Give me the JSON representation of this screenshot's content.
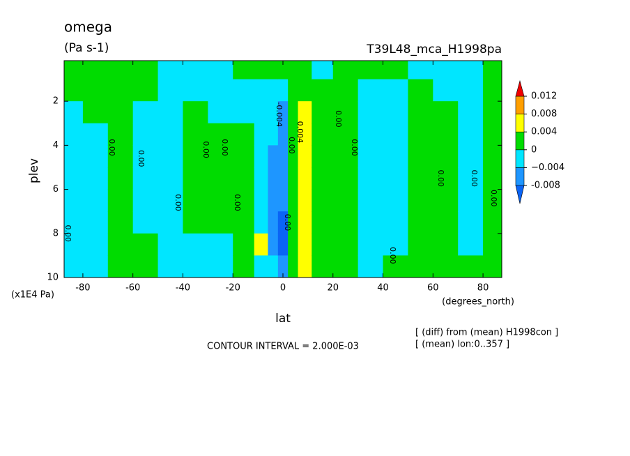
{
  "chart_data": {
    "type": "contour",
    "title": "omega",
    "units": "(Pa s-1)",
    "subtitle": "T39L48_mca_H1998pa",
    "x_label": "lat",
    "x_unit": "(degrees_north)",
    "y_label": "plev",
    "y_unit": "(x1E4 Pa)",
    "contour_interval": "CONTOUR INTERVAL = 2.000E-03",
    "notes": [
      "[ (diff) from (mean) H1998con ]",
      "[ (mean) lon:0..357 ]"
    ],
    "xlim": [
      -87.5,
      87.5
    ],
    "xticks": [
      -80,
      -60,
      -40,
      -20,
      0,
      20,
      40,
      60,
      80
    ],
    "ylim": [
      0.16,
      10
    ],
    "yticks": [
      2,
      4,
      6,
      8,
      10
    ],
    "y_reversed": true,
    "x": [
      -85,
      -75,
      -65,
      -55,
      -45,
      -35,
      -25,
      -15,
      -8,
      -4,
      0,
      4,
      8,
      15,
      25,
      35,
      45,
      55,
      65,
      75,
      85
    ],
    "y": [
      0.5,
      1.5,
      2.5,
      3.5,
      4.5,
      5.5,
      6.5,
      7.5,
      8.5,
      9.5
    ],
    "z": [
      [
        0.002,
        0.002,
        -0.002,
        -0.002,
        -0.002,
        -0.002,
        -0.002,
        -0.002,
        -0.002,
        -0.002
      ],
      [
        0.002,
        0.002,
        0.002,
        -0.002,
        -0.002,
        -0.002,
        -0.002,
        -0.002,
        -0.002,
        -0.002
      ],
      [
        0.002,
        0.002,
        0.002,
        0.002,
        0.002,
        0.002,
        0.002,
        0.002,
        0.002,
        0.002
      ],
      [
        0.002,
        0.002,
        -0.002,
        -0.002,
        -0.002,
        -0.002,
        -0.002,
        -0.002,
        0.002,
        0.002
      ],
      [
        -0.002,
        -0.002,
        -0.002,
        -0.002,
        -0.002,
        -0.002,
        -0.002,
        -0.002,
        -0.002,
        -0.002
      ],
      [
        -0.002,
        -0.002,
        0.002,
        0.002,
        0.002,
        0.002,
        0.002,
        0.002,
        -0.002,
        -0.002
      ],
      [
        -0.002,
        -0.002,
        -0.002,
        0.002,
        0.002,
        0.002,
        0.002,
        0.002,
        -0.002,
        -0.002
      ],
      [
        0.002,
        -0.002,
        -0.002,
        0.002,
        0.002,
        0.002,
        0.002,
        0.002,
        0.002,
        0.002
      ],
      [
        0.002,
        -0.002,
        -0.002,
        -0.002,
        -0.002,
        -0.002,
        -0.002,
        -0.002,
        0.006,
        -0.002
      ],
      [
        0.002,
        -0.002,
        -0.002,
        -0.002,
        -0.006,
        -0.006,
        -0.006,
        -0.006,
        -0.006,
        -0.002
      ],
      [
        0.002,
        -0.002,
        -0.006,
        -0.006,
        -0.006,
        -0.006,
        -0.006,
        -0.009,
        -0.009,
        -0.006
      ],
      [
        0.002,
        0.002,
        0.002,
        0.002,
        0.002,
        0.002,
        0.002,
        0.002,
        0.002,
        0.002
      ],
      [
        0.002,
        0.002,
        0.006,
        0.006,
        0.006,
        0.006,
        0.006,
        0.006,
        0.006,
        0.006
      ],
      [
        -0.002,
        0.002,
        0.002,
        0.002,
        0.002,
        0.002,
        0.002,
        0.002,
        0.002,
        0.002
      ],
      [
        0.002,
        0.002,
        0.002,
        0.002,
        0.002,
        0.002,
        0.002,
        0.002,
        0.002,
        0.002
      ],
      [
        0.002,
        -0.002,
        -0.002,
        -0.002,
        -0.002,
        -0.002,
        -0.002,
        -0.002,
        -0.002,
        -0.002
      ],
      [
        0.002,
        -0.002,
        -0.002,
        -0.002,
        -0.002,
        -0.002,
        -0.002,
        -0.002,
        -0.002,
        0.002
      ],
      [
        -0.002,
        0.002,
        0.002,
        0.002,
        0.002,
        0.002,
        0.002,
        0.002,
        0.002,
        0.002
      ],
      [
        -0.002,
        -0.002,
        0.002,
        0.002,
        0.002,
        0.002,
        0.002,
        0.002,
        0.002,
        0.002
      ],
      [
        -0.002,
        -0.002,
        -0.002,
        -0.002,
        -0.002,
        -0.002,
        -0.002,
        -0.002,
        -0.002,
        0.002
      ],
      [
        0.002,
        0.002,
        0.002,
        0.002,
        0.002,
        0.002,
        0.002,
        0.002,
        0.002,
        0.002
      ]
    ],
    "levels": [
      -0.008,
      {
        "value": -0.004,
        "label": "−0.004"
      },
      0,
      0.004,
      0.008,
      0.012
    ],
    "colors": [
      "#0a64f5",
      "#1e96ff",
      "#00e6ff",
      "#00dc00",
      "#ffff00",
      "#ff9f00",
      "#f00000"
    ],
    "contour_labels": [
      {
        "text": "0.00",
        "x": -86.1,
        "y": 8.0
      },
      {
        "text": "0.00",
        "x": -68.6,
        "y": 4.1
      },
      {
        "text": "0.00",
        "x": -56.9,
        "y": 4.6
      },
      {
        "text": "0.00",
        "x": -42.1,
        "y": 6.6
      },
      {
        "text": "0.00",
        "x": -30.9,
        "y": 4.2
      },
      {
        "text": "0.00",
        "x": -23.4,
        "y": 4.1
      },
      {
        "text": "0.00",
        "x": -18.4,
        "y": 6.6
      },
      {
        "text": "-0.004",
        "x": -1.7,
        "y": 2.6
      },
      {
        "text": "0.00",
        "x": 3.3,
        "y": 4.0
      },
      {
        "text": "0.004",
        "x": 6.7,
        "y": 3.4
      },
      {
        "text": "0.00",
        "x": 1.7,
        "y": 7.5
      },
      {
        "text": "0.00",
        "x": 22.0,
        "y": 2.8
      },
      {
        "text": "0.00",
        "x": 28.4,
        "y": 4.1
      },
      {
        "text": "0.00",
        "x": 43.8,
        "y": 9.0
      },
      {
        "text": "0.00",
        "x": 63.0,
        "y": 5.5
      },
      {
        "text": "0.00",
        "x": 76.4,
        "y": 5.5
      },
      {
        "text": "0.00",
        "x": 84.2,
        "y": 6.4
      }
    ]
  }
}
